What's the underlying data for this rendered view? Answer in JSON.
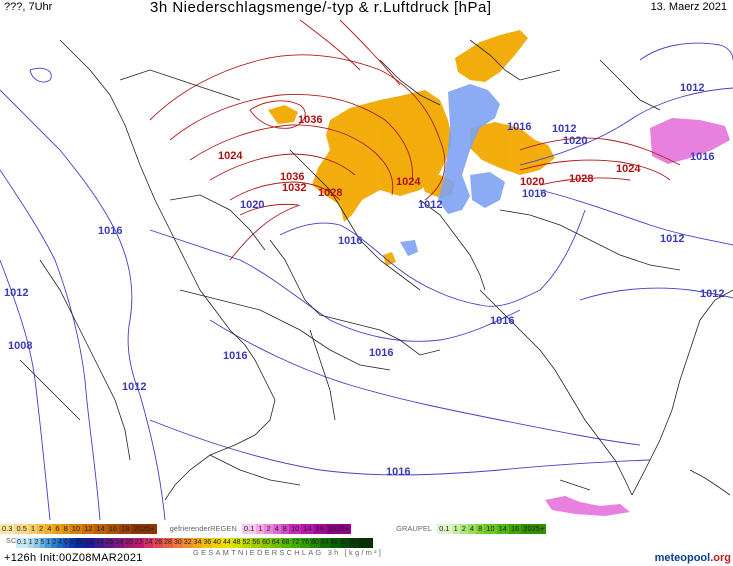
{
  "header": {
    "left": "???, 7Uhr",
    "title": "3h Niederschlagsmenge/-typ & r.Luftdruck [hPa]",
    "date": "13. Maerz 2021"
  },
  "isobars": {
    "blue": [
      "1012",
      "1016",
      "1016",
      "1012",
      "1020",
      "1016",
      "1012",
      "1020",
      "1016",
      "1016",
      "1012",
      "1016",
      "1012",
      "1012",
      "1008",
      "1016",
      "1016",
      "1012",
      "1016",
      "1016",
      "1020",
      "1016"
    ],
    "red": [
      "1036",
      "1024",
      "1036",
      "1032",
      "1028",
      "1024",
      "1020",
      "1028",
      "1024"
    ]
  },
  "legend": {
    "snow_label": "SCHNEE",
    "snow_values": [
      "0.3",
      "0.5",
      "1",
      "2",
      "4",
      "6",
      "8",
      "10",
      "12",
      "14",
      "16",
      "18",
      "2025+"
    ],
    "freezing_rain_label": "gefrierenderREGEN",
    "freezing_rain_values": [
      "0.1",
      "1",
      "2",
      "4",
      "8",
      "10",
      "14",
      "16",
      "2025+"
    ],
    "graupel_label": "GRAUPEL",
    "graupel_values": [
      "0.1",
      "1",
      "2",
      "4",
      "8",
      "10",
      "14",
      "16",
      "2025+"
    ],
    "total_values": [
      "0.1",
      "1",
      "2",
      "5",
      "1",
      "2",
      "4",
      "6",
      "8",
      "10",
      "12",
      "14",
      "16",
      "18",
      "20",
      "22",
      "24",
      "26",
      "28",
      "30",
      "32",
      "34",
      "36",
      "40",
      "44",
      "48",
      "52",
      "56",
      "60",
      "64",
      "68",
      "72",
      "76",
      "80",
      "84",
      "88",
      "92",
      "96",
      "100"
    ],
    "total_label": "GESAMTNIEDERSCHLAG 3h [kg/m²]"
  },
  "footer": {
    "run": "+126h Init:00Z08MAR2021",
    "brand_main": "meteopool",
    "brand_tld": ".org"
  },
  "colors": {
    "snow": "#f0a800",
    "rain": "#7fa2f4",
    "mixed": "#e46ad9",
    "blue_isobar": "#4040c8",
    "red_isobar": "#b01818",
    "border": "#222222"
  }
}
